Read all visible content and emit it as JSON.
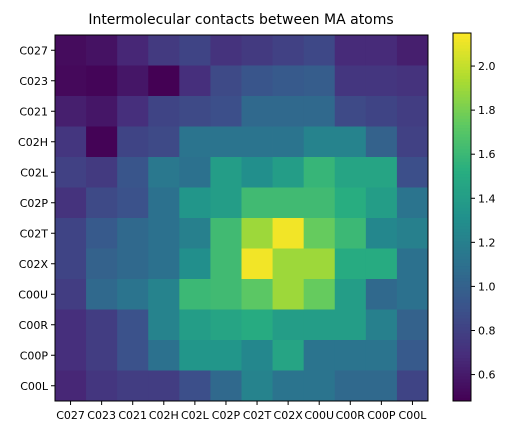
{
  "chart_data": {
    "type": "heatmap",
    "title": "Intermolecular contacts between MA atoms",
    "xlabel": "",
    "ylabel": "",
    "x_labels": [
      "C027",
      "C023",
      "C021",
      "C02H",
      "C02L",
      "C02P",
      "C02T",
      "C02X",
      "C00U",
      "C00R",
      "C00P",
      "C00L"
    ],
    "y_labels": [
      "C027",
      "C023",
      "C021",
      "C02H",
      "C02L",
      "C02P",
      "C02T",
      "C02X",
      "C00U",
      "C00R",
      "C00P",
      "C00L"
    ],
    "values": [
      [
        0.53,
        0.56,
        0.66,
        0.76,
        0.82,
        0.72,
        0.76,
        0.8,
        0.84,
        0.68,
        0.68,
        0.62
      ],
      [
        0.52,
        0.5,
        0.58,
        0.48,
        0.7,
        0.85,
        0.92,
        0.95,
        0.97,
        0.74,
        0.74,
        0.72
      ],
      [
        0.62,
        0.58,
        0.7,
        0.82,
        0.85,
        0.88,
        1.05,
        1.05,
        1.05,
        0.85,
        0.82,
        0.78
      ],
      [
        0.74,
        0.49,
        0.82,
        0.85,
        1.12,
        1.12,
        1.12,
        1.12,
        1.22,
        1.22,
        1.0,
        0.8
      ],
      [
        0.8,
        0.76,
        0.92,
        1.15,
        1.1,
        1.4,
        1.3,
        1.4,
        1.58,
        1.45,
        1.45,
        0.88
      ],
      [
        0.72,
        0.85,
        0.9,
        1.1,
        1.35,
        1.4,
        1.62,
        1.62,
        1.62,
        1.52,
        1.4,
        1.12
      ],
      [
        0.82,
        0.95,
        1.05,
        1.1,
        1.2,
        1.62,
        1.9,
        2.12,
        1.75,
        1.6,
        1.25,
        1.2
      ],
      [
        0.82,
        1.0,
        1.05,
        1.1,
        1.3,
        1.62,
        2.12,
        1.9,
        1.9,
        1.5,
        1.5,
        1.1
      ],
      [
        0.78,
        1.05,
        1.12,
        1.22,
        1.6,
        1.62,
        1.72,
        1.9,
        1.75,
        1.4,
        1.05,
        1.1
      ],
      [
        0.7,
        0.78,
        0.9,
        1.22,
        1.4,
        1.45,
        1.5,
        1.4,
        1.4,
        1.4,
        1.2,
        1.0
      ],
      [
        0.7,
        0.78,
        0.9,
        1.1,
        1.35,
        1.35,
        1.25,
        1.45,
        1.12,
        1.12,
        1.12,
        0.95
      ],
      [
        0.66,
        0.74,
        0.78,
        0.78,
        0.88,
        1.05,
        1.22,
        1.12,
        1.12,
        1.05,
        1.05,
        0.82
      ]
    ],
    "colormap": "viridis",
    "vmin": 0.48,
    "vmax": 2.15,
    "colorbar_ticks": [
      "0.6",
      "0.8",
      "1.0",
      "1.2",
      "1.4",
      "1.6",
      "1.8",
      "2.0"
    ],
    "grid": false,
    "legend": "colorbar-right"
  }
}
